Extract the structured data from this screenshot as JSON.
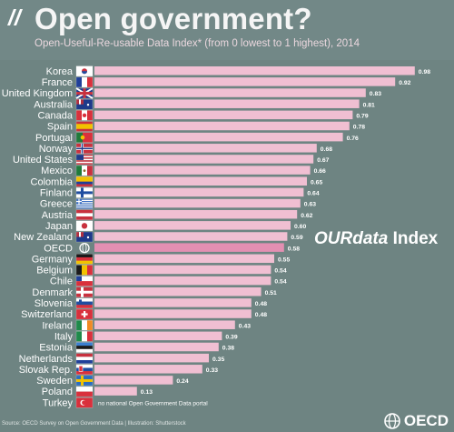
{
  "header": {
    "title": "Open government?",
    "subtitle": "Open-Useful-Re-usable Data Index* (from 0 lowest to 1 highest), 2014"
  },
  "annotation": {
    "part1": "OUR",
    "part2": "data",
    "part3": " Index"
  },
  "footer": {
    "source": "Source: OECD Survey on Open Government Data | Illustration: Shutterstock",
    "logo_text": "OECD"
  },
  "colors": {
    "bar": "#f0bfd2",
    "bar_highlight": "#e38fb2",
    "background": "#6e8482"
  },
  "chart_data": {
    "type": "bar",
    "orientation": "horizontal",
    "title": "Open government?",
    "subtitle": "Open-Useful-Re-usable Data Index* (from 0 lowest to 1 highest), 2014",
    "xlim": [
      0,
      1
    ],
    "grid": false,
    "categories": [
      "Korea",
      "France",
      "United Kingdom",
      "Australia",
      "Canada",
      "Spain",
      "Portugal",
      "Norway",
      "United States",
      "Mexico",
      "Colombia",
      "Finland",
      "Greece",
      "Austria",
      "Japan",
      "New Zealand",
      "OECD",
      "Germany",
      "Belgium",
      "Chile",
      "Denmark",
      "Slovenia",
      "Switzerland",
      "Ireland",
      "Italy",
      "Estonia",
      "Netherlands",
      "Slovak Rep.",
      "Sweden",
      "Poland",
      "Turkey"
    ],
    "values": [
      0.98,
      0.92,
      0.83,
      0.81,
      0.79,
      0.78,
      0.76,
      0.68,
      0.67,
      0.66,
      0.65,
      0.64,
      0.63,
      0.62,
      0.6,
      0.59,
      0.58,
      0.55,
      0.54,
      0.54,
      0.51,
      0.48,
      0.48,
      0.43,
      0.39,
      0.38,
      0.35,
      0.33,
      0.24,
      0.13,
      null
    ],
    "labels": [
      "0.98",
      "0.92",
      "0.83",
      "0.81",
      "0.79",
      "0.78",
      "0.76",
      "0.68",
      "0.67",
      "0.66",
      "0.65",
      "0.64",
      "0.63",
      "0.62",
      "0.60",
      "0.59",
      "0.58",
      "0.55",
      "0.54",
      "0.54",
      "0.51",
      "0.48",
      "0.48",
      "0.43",
      "0.39",
      "0.38",
      "0.35",
      "0.33",
      "0.24",
      "0.13",
      "no national Open Government Data portal"
    ],
    "highlight": "OECD"
  }
}
